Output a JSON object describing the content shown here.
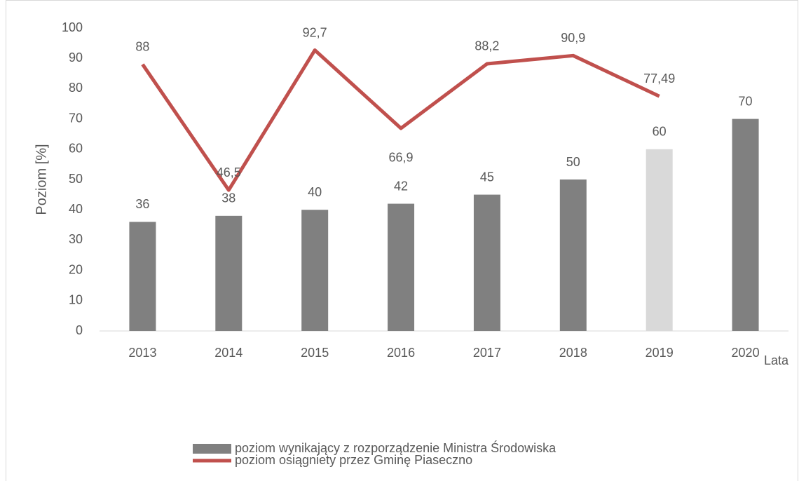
{
  "chart_data": {
    "type": "bar",
    "x_label": "Lata",
    "y_label": "Poziom [%]",
    "categories": [
      "2013",
      "2014",
      "2015",
      "2016",
      "2017",
      "2018",
      "2019",
      "2020"
    ],
    "series": [
      {
        "name": "poziom wynikający z rozporządzenie Ministra Środowiska",
        "type": "bar",
        "color": "#808080",
        "colors": [
          "#808080",
          "#808080",
          "#808080",
          "#808080",
          "#808080",
          "#808080",
          "#d9d9d9",
          "#808080"
        ],
        "values": [
          36,
          38,
          40,
          42,
          45,
          50,
          60,
          70
        ]
      },
      {
        "name": "poziom osiągniety przez Gminę Piaseczno",
        "type": "line",
        "color": "#c0504d",
        "values": [
          88,
          46.5,
          92.7,
          66.9,
          88.2,
          90.9,
          77.49,
          null
        ],
        "value_labels": [
          "88",
          "46,5",
          "92,7",
          "66,9",
          "88,2",
          "90,9",
          "77,49",
          null
        ]
      }
    ],
    "ylim": [
      0,
      100
    ],
    "yticks": [
      0,
      10,
      20,
      30,
      40,
      50,
      60,
      70,
      80,
      90,
      100
    ],
    "grid": false,
    "legend": "bottom"
  }
}
